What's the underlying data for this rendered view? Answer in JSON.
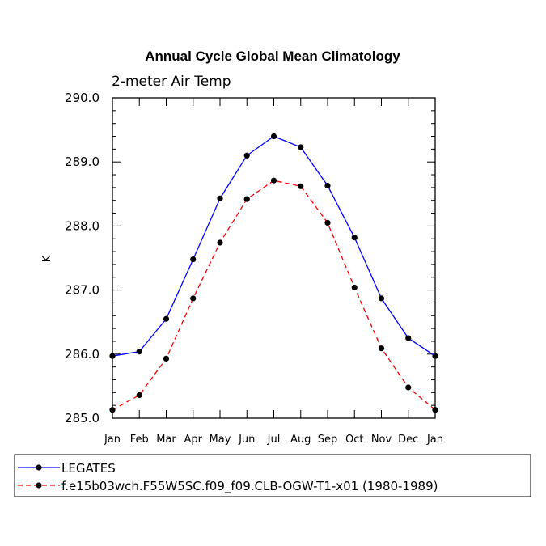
{
  "chart_data": {
    "type": "line",
    "title": "Annual Cycle Global Mean Climatology",
    "subtitle": "2-meter Air Temp",
    "ylabel": "K",
    "xlabel": "",
    "ylim": [
      285.0,
      290.0
    ],
    "yticks": [
      285.0,
      286.0,
      287.0,
      288.0,
      289.0,
      290.0
    ],
    "ytick_labels": [
      "285.0",
      "286.0",
      "287.0",
      "288.0",
      "289.0",
      "290.0"
    ],
    "categories": [
      "Jan",
      "Feb",
      "Mar",
      "Apr",
      "May",
      "Jun",
      "Jul",
      "Aug",
      "Sep",
      "Oct",
      "Nov",
      "Dec",
      "Jan"
    ],
    "series": [
      {
        "name": "LEGATES",
        "color": "#0000ff",
        "dash": "solid",
        "values": [
          285.97,
          286.04,
          286.55,
          287.48,
          288.43,
          289.1,
          289.4,
          289.23,
          288.63,
          287.82,
          286.87,
          286.25,
          285.97
        ]
      },
      {
        "name": "f.e15b03wch.F55W5SC.f09_f09.CLB-OGW-T1-x01 (1980-1989)",
        "color": "#ff0000",
        "dash": "dashed",
        "values": [
          285.13,
          285.36,
          285.93,
          286.87,
          287.74,
          288.42,
          288.71,
          288.62,
          288.05,
          287.04,
          286.09,
          285.48,
          285.13
        ]
      }
    ],
    "legend_position": "bottom"
  }
}
